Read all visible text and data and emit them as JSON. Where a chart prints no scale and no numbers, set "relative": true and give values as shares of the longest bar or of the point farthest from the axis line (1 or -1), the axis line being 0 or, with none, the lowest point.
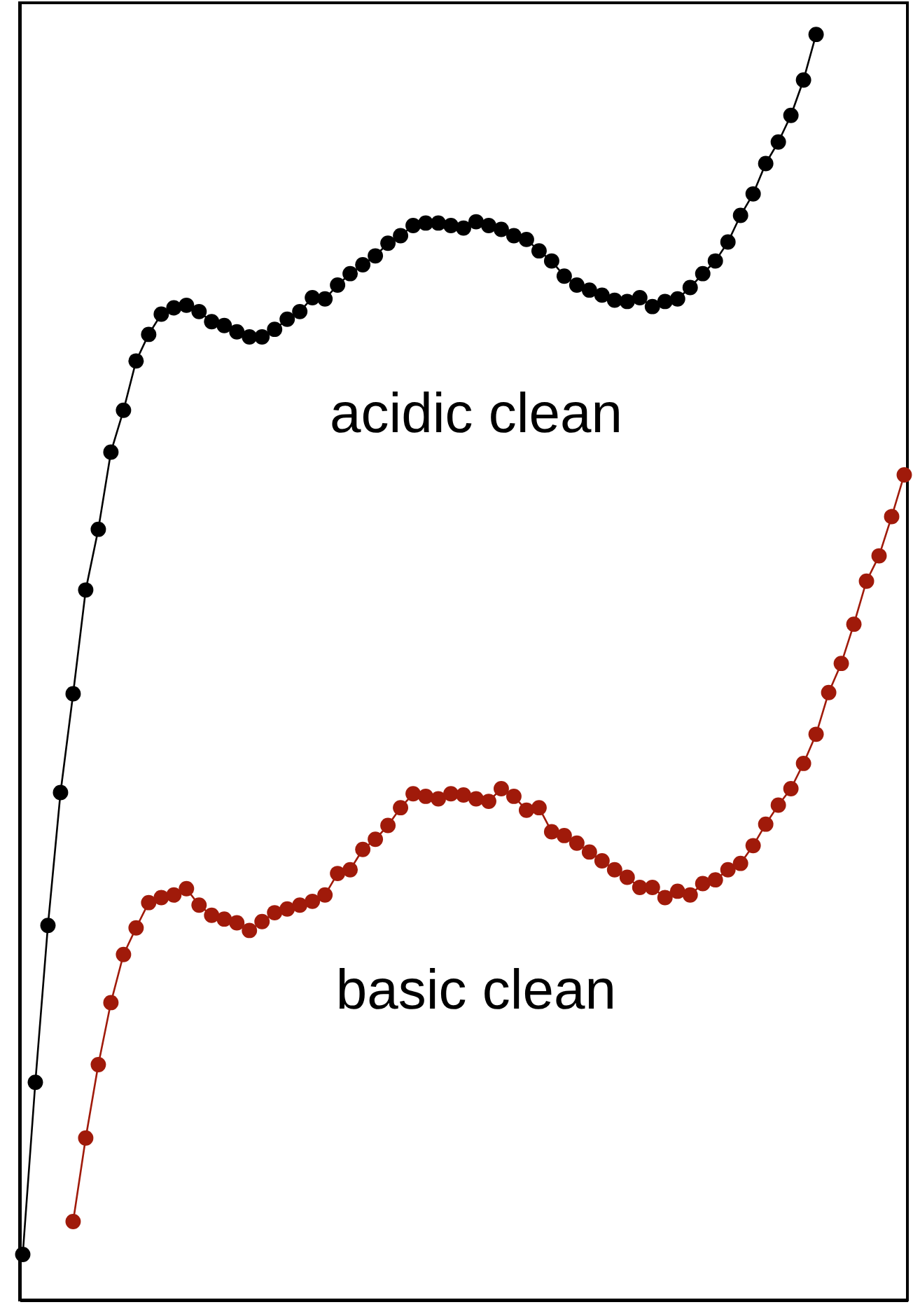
{
  "chart_data": {
    "type": "line",
    "relative": true,
    "marker": "circle",
    "line_style": "solid",
    "grid": false,
    "categories": [
      null,
      null,
      null,
      null,
      null,
      null,
      null,
      null,
      null,
      null,
      null,
      null,
      null,
      null,
      null,
      null,
      null,
      null,
      null,
      null,
      null,
      null,
      null,
      null,
      null,
      null,
      null,
      null,
      null,
      null,
      null,
      null,
      null,
      null,
      null,
      null,
      null,
      null,
      null,
      null,
      null,
      null,
      null,
      null,
      null,
      null,
      null,
      null,
      null,
      null,
      null,
      null,
      null,
      null,
      null,
      null,
      null,
      null,
      null,
      null,
      null,
      null,
      null,
      null,
      null,
      null,
      null,
      null,
      null,
      null,
      null
    ],
    "series": [
      {
        "name": "acidic clean",
        "color": "#000000",
        "values": [
          0.036,
          0.172,
          0.296,
          0.401,
          0.479,
          0.561,
          0.609,
          0.67,
          0.703,
          0.742,
          0.763,
          0.779,
          0.784,
          0.786,
          0.781,
          0.773,
          0.77,
          0.765,
          0.761,
          0.761,
          0.767,
          0.775,
          0.781,
          0.792,
          0.791,
          0.802,
          0.811,
          0.818,
          0.825,
          0.835,
          0.841,
          0.849,
          0.851,
          0.851,
          0.849,
          0.847,
          0.852,
          0.849,
          0.846,
          0.841,
          0.838,
          0.829,
          0.821,
          0.809,
          0.802,
          0.798,
          0.794,
          0.79,
          0.789,
          0.792,
          0.785,
          0.789,
          0.791,
          0.8,
          0.811,
          0.821,
          0.836,
          0.857,
          0.874,
          0.898,
          0.915,
          0.936,
          0.964,
          1,
          null,
          null,
          null,
          null,
          null,
          null,
          null
        ]
      },
      {
        "name": "basic clean",
        "color": "#a01a0a",
        "values": [
          null,
          null,
          null,
          null,
          0.062,
          0.128,
          0.186,
          0.235,
          0.273,
          0.294,
          0.314,
          0.318,
          0.32,
          0.325,
          0.312,
          0.304,
          0.301,
          0.298,
          0.292,
          0.299,
          0.306,
          0.309,
          0.312,
          0.315,
          0.32,
          0.337,
          0.34,
          0.356,
          0.364,
          0.375,
          0.389,
          0.4,
          0.398,
          0.396,
          0.4,
          0.399,
          0.396,
          0.394,
          0.404,
          0.398,
          0.387,
          0.389,
          0.37,
          0.367,
          0.361,
          0.354,
          0.347,
          0.34,
          0.334,
          0.326,
          0.326,
          0.318,
          0.323,
          0.32,
          0.329,
          0.332,
          0.34,
          0.345,
          0.359,
          0.376,
          0.391,
          0.404,
          0.424,
          0.447,
          0.48,
          0.503,
          0.534,
          0.568,
          0.588,
          0.619,
          0.652
        ]
      }
    ]
  }
}
